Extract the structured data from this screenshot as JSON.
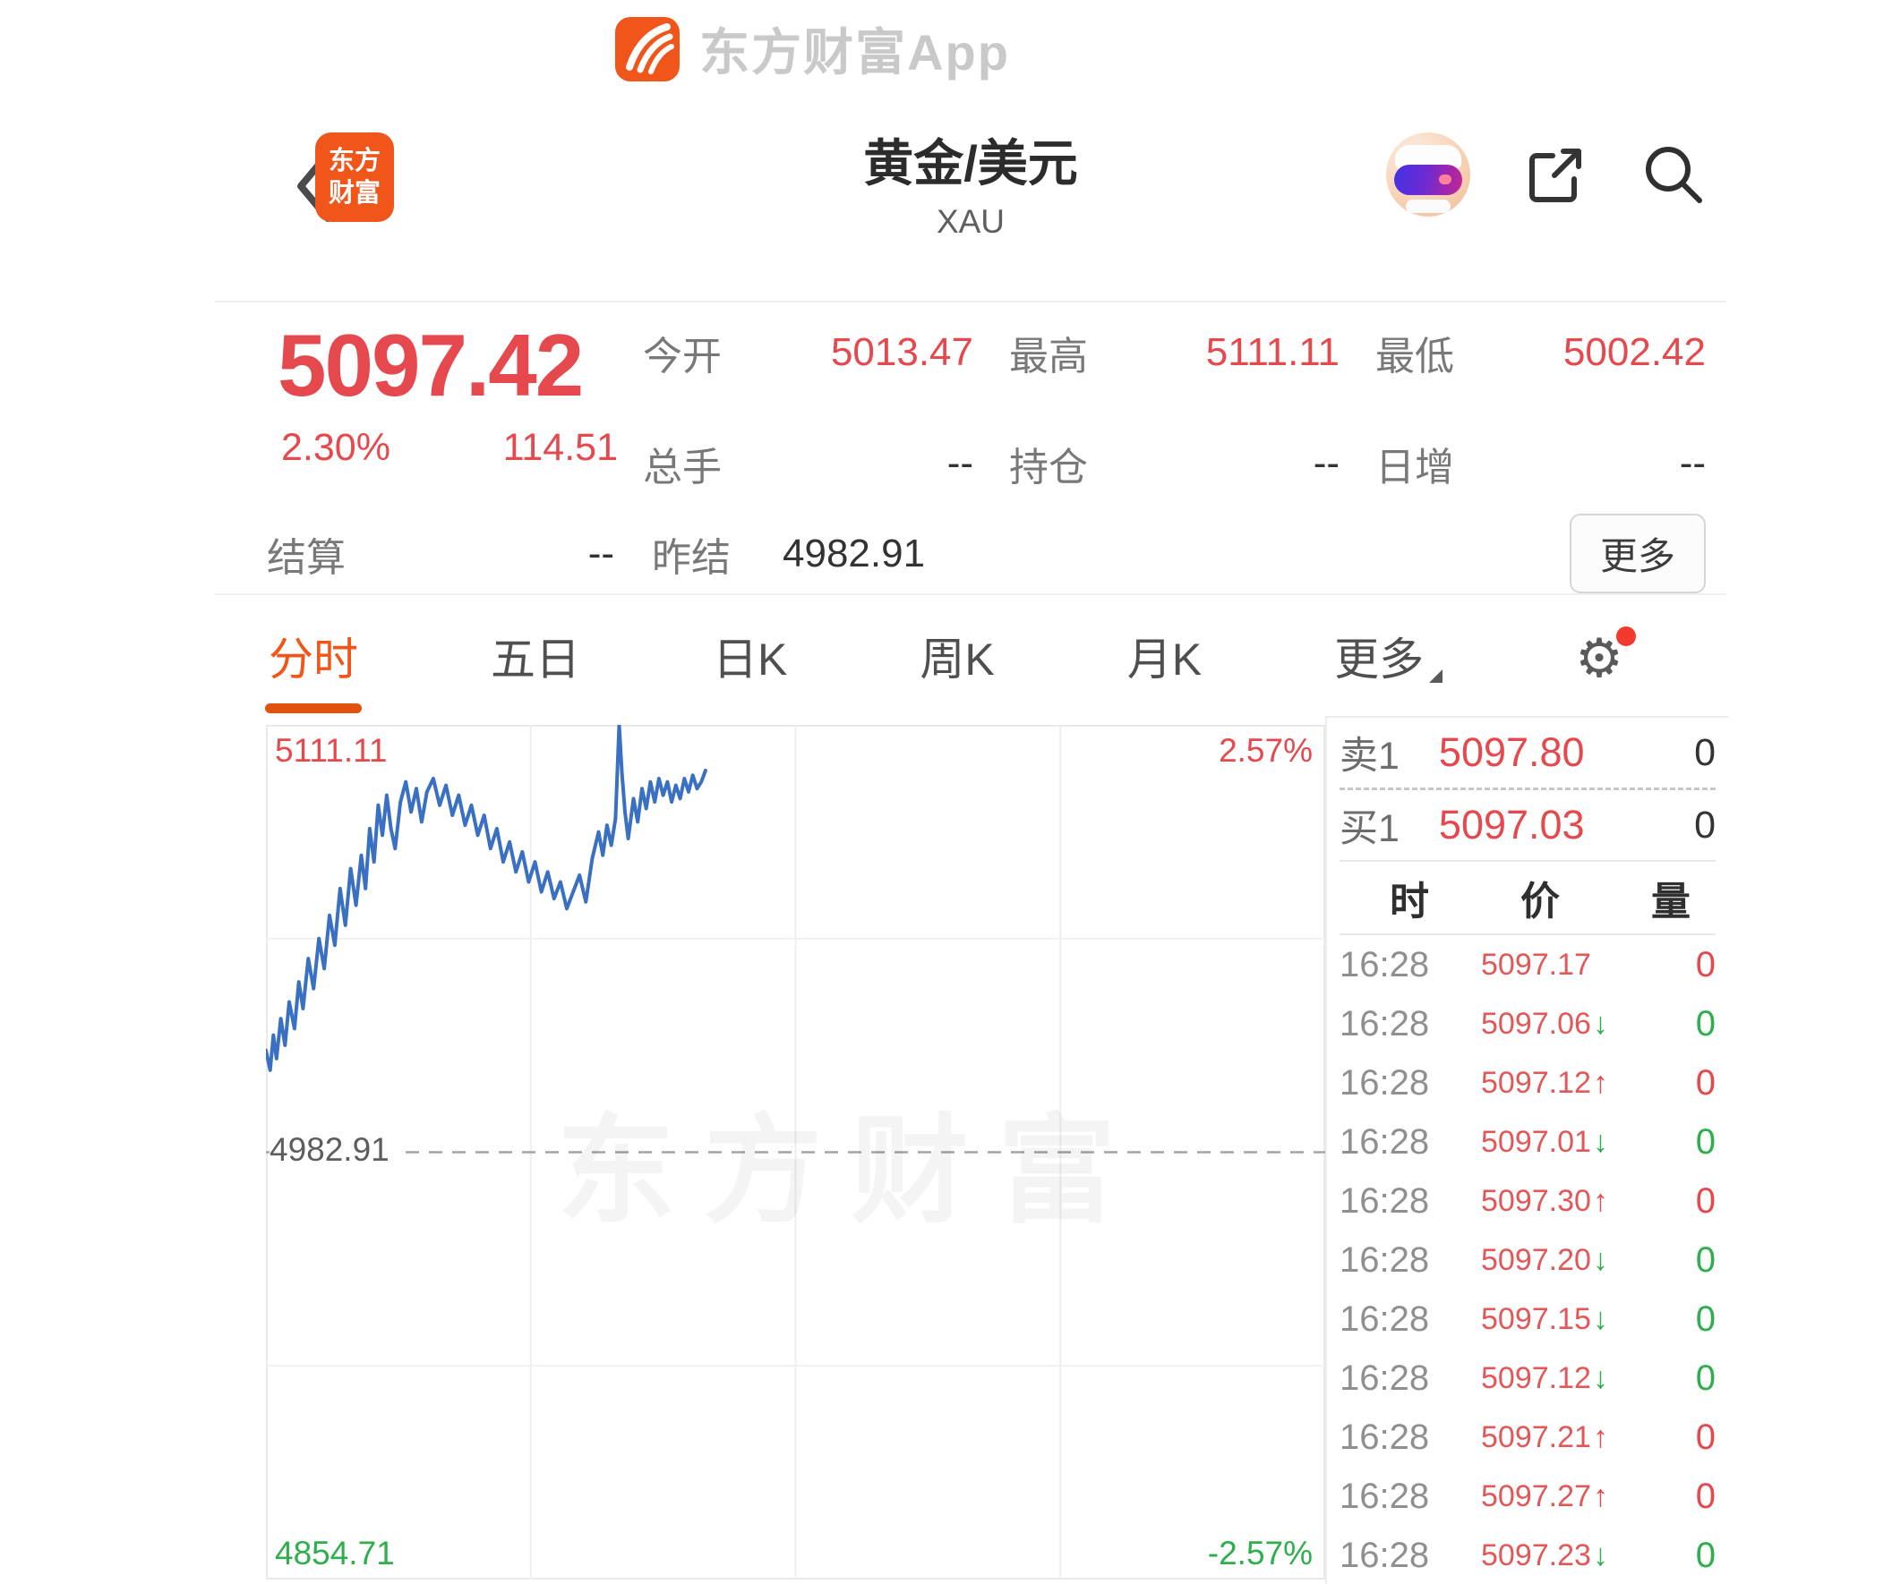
{
  "app_banner": {
    "app_name": "东方财富App"
  },
  "nav": {
    "title": "黄金/美元",
    "subtitle": "XAU",
    "logo_line1": "东方",
    "logo_line2": "财富"
  },
  "quote": {
    "last": "5097.42",
    "change_pct": "2.30%",
    "change_val": "114.51",
    "stats": [
      {
        "label": "今开",
        "value": "5013.47"
      },
      {
        "label": "最高",
        "value": "5111.11"
      },
      {
        "label": "最低",
        "value": "5002.42"
      },
      {
        "label": "总手",
        "value": "--"
      },
      {
        "label": "持仓",
        "value": "--"
      },
      {
        "label": "日增",
        "value": "--"
      }
    ],
    "settle_label": "结算",
    "settle_value": "--",
    "prev_settle_label": "昨结",
    "prev_settle_value": "4982.91",
    "more_label": "更多"
  },
  "tabs": {
    "items": [
      "分时",
      "五日",
      "日K",
      "周K",
      "月K"
    ],
    "more_label": "更多",
    "active_index": 0
  },
  "chart_data": {
    "type": "line",
    "title": "分时",
    "ylim": [
      4854.71,
      5111.11
    ],
    "baseline": 4982.91,
    "y_top_label": "5111.11",
    "y_mid_label": "4982.91",
    "y_bottom_label": "4854.71",
    "pct_top_label": "2.57%",
    "pct_bottom_label": "-2.57%",
    "watermark": "东方财富",
    "line_color": "#3a70c2",
    "grid": "quarters, dashed baseline at mid",
    "x_extent_frac": 0.415,
    "polyline": [
      [
        0.0,
        5013.5
      ],
      [
        0.004,
        5007.5
      ],
      [
        0.007,
        5018
      ],
      [
        0.01,
        5011
      ],
      [
        0.014,
        5023
      ],
      [
        0.018,
        5015
      ],
      [
        0.022,
        5028
      ],
      [
        0.027,
        5020
      ],
      [
        0.031,
        5034
      ],
      [
        0.035,
        5026
      ],
      [
        0.04,
        5041
      ],
      [
        0.045,
        5032
      ],
      [
        0.05,
        5047
      ],
      [
        0.055,
        5038
      ],
      [
        0.06,
        5054
      ],
      [
        0.065,
        5045
      ],
      [
        0.07,
        5062
      ],
      [
        0.075,
        5051
      ],
      [
        0.08,
        5068
      ],
      [
        0.085,
        5057
      ],
      [
        0.09,
        5072
      ],
      [
        0.094,
        5062
      ],
      [
        0.098,
        5080
      ],
      [
        0.102,
        5070
      ],
      [
        0.106,
        5087
      ],
      [
        0.11,
        5078
      ],
      [
        0.114,
        5090
      ],
      [
        0.118,
        5080
      ],
      [
        0.122,
        5074
      ],
      [
        0.127,
        5088
      ],
      [
        0.132,
        5094
      ],
      [
        0.137,
        5085
      ],
      [
        0.142,
        5092
      ],
      [
        0.147,
        5082
      ],
      [
        0.152,
        5091
      ],
      [
        0.158,
        5095
      ],
      [
        0.164,
        5087
      ],
      [
        0.17,
        5093
      ],
      [
        0.176,
        5084
      ],
      [
        0.182,
        5090
      ],
      [
        0.188,
        5081
      ],
      [
        0.194,
        5087
      ],
      [
        0.2,
        5078
      ],
      [
        0.206,
        5084
      ],
      [
        0.212,
        5074
      ],
      [
        0.218,
        5080
      ],
      [
        0.224,
        5070
      ],
      [
        0.23,
        5076
      ],
      [
        0.236,
        5067
      ],
      [
        0.242,
        5073
      ],
      [
        0.248,
        5064
      ],
      [
        0.254,
        5070
      ],
      [
        0.26,
        5061
      ],
      [
        0.266,
        5067
      ],
      [
        0.272,
        5059
      ],
      [
        0.278,
        5064
      ],
      [
        0.284,
        5056
      ],
      [
        0.29,
        5061
      ],
      [
        0.296,
        5066
      ],
      [
        0.302,
        5058
      ],
      [
        0.308,
        5071
      ],
      [
        0.314,
        5079
      ],
      [
        0.318,
        5072
      ],
      [
        0.322,
        5081
      ],
      [
        0.326,
        5075
      ],
      [
        0.33,
        5083
      ],
      [
        0.3335,
        5111.11
      ],
      [
        0.336,
        5097
      ],
      [
        0.339,
        5085
      ],
      [
        0.342,
        5077
      ],
      [
        0.347,
        5089
      ],
      [
        0.351,
        5082
      ],
      [
        0.355,
        5092
      ],
      [
        0.359,
        5086
      ],
      [
        0.363,
        5094
      ],
      [
        0.367,
        5088
      ],
      [
        0.371,
        5095
      ],
      [
        0.375,
        5090
      ],
      [
        0.379,
        5094
      ],
      [
        0.383,
        5088
      ],
      [
        0.387,
        5093
      ],
      [
        0.391,
        5089
      ],
      [
        0.395,
        5095
      ],
      [
        0.399,
        5091
      ],
      [
        0.403,
        5096
      ],
      [
        0.407,
        5092
      ],
      [
        0.411,
        5094
      ],
      [
        0.415,
        5097.42
      ]
    ]
  },
  "order_book": {
    "ask_label": "卖1",
    "ask_price": "5097.80",
    "ask_vol": "0",
    "bid_label": "买1",
    "bid_price": "5097.03",
    "bid_vol": "0",
    "headers": [
      "时",
      "价",
      "量"
    ]
  },
  "trades": {
    "rows": [
      {
        "time": "16:28",
        "price": "5097.17",
        "arrow": "",
        "trend": "red",
        "vol": "0"
      },
      {
        "time": "16:28",
        "price": "5097.06",
        "arrow": "↓",
        "trend": "green",
        "vol": "0"
      },
      {
        "time": "16:28",
        "price": "5097.12",
        "arrow": "↑",
        "trend": "red",
        "vol": "0"
      },
      {
        "time": "16:28",
        "price": "5097.01",
        "arrow": "↓",
        "trend": "green",
        "vol": "0"
      },
      {
        "time": "16:28",
        "price": "5097.30",
        "arrow": "↑",
        "trend": "red",
        "vol": "0"
      },
      {
        "time": "16:28",
        "price": "5097.20",
        "arrow": "↓",
        "trend": "green",
        "vol": "0"
      },
      {
        "time": "16:28",
        "price": "5097.15",
        "arrow": "↓",
        "trend": "green",
        "vol": "0"
      },
      {
        "time": "16:28",
        "price": "5097.12",
        "arrow": "↓",
        "trend": "green",
        "vol": "0"
      },
      {
        "time": "16:28",
        "price": "5097.21",
        "arrow": "↑",
        "trend": "red",
        "vol": "0"
      },
      {
        "time": "16:28",
        "price": "5097.27",
        "arrow": "↑",
        "trend": "red",
        "vol": "0"
      },
      {
        "time": "16:28",
        "price": "5097.23",
        "arrow": "↓",
        "trend": "green",
        "vol": "0"
      }
    ]
  },
  "colors": {
    "red": "#e5494d",
    "green": "#2fae4e",
    "orange": "#f0551a",
    "blue": "#3a70c2"
  }
}
